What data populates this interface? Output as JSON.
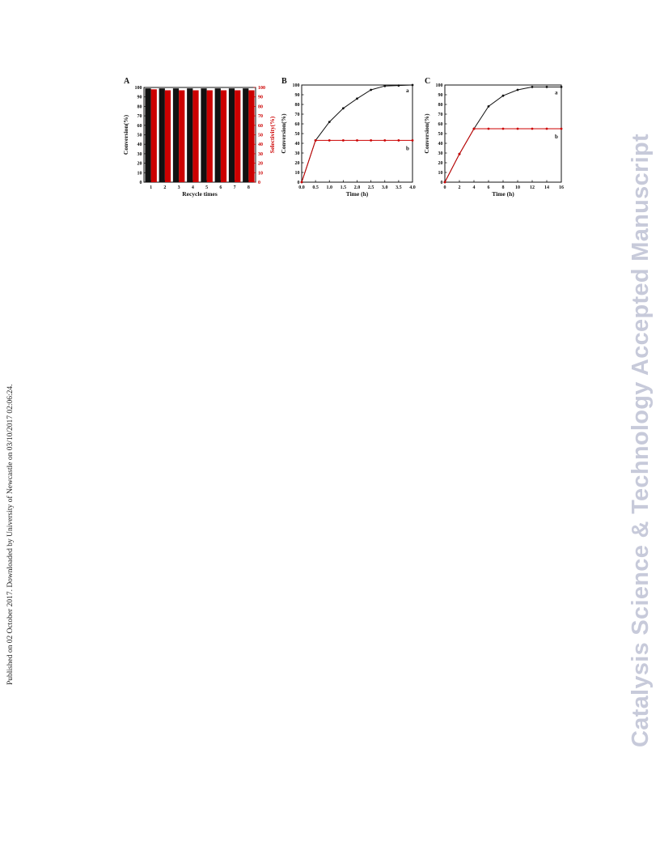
{
  "side_note": "Published on 02 October 2017. Downloaded by University of Newcastle on 03/10/2017 02:06:24.",
  "watermark": "Catalysis Science & Technology Accepted Manuscript",
  "colors": {
    "series_a": "#111111",
    "series_b": "#cc0000",
    "watermark": "#c7cada"
  },
  "chart_data": [
    {
      "panel": "A",
      "type": "bar",
      "xlabel": "Recycle times",
      "ylabel": "Conversion(%)",
      "ylabel_right": "Selectivity(%)",
      "categories": [
        "1",
        "2",
        "3",
        "4",
        "5",
        "6",
        "7",
        "8"
      ],
      "ylim": [
        0,
        100
      ],
      "yticks": [
        "0",
        "10",
        "20",
        "30",
        "40",
        "50",
        "60",
        "70",
        "80",
        "90",
        "100"
      ],
      "series": [
        {
          "values": [
            99,
            99,
            99,
            99,
            99,
            99,
            99,
            99
          ]
        },
        {
          "values": [
            98,
            97,
            97,
            97,
            97,
            97,
            97,
            97
          ]
        }
      ]
    },
    {
      "panel": "B",
      "type": "line",
      "xlabel": "Time (h)",
      "ylabel": "Conversion(%)",
      "xlim": [
        0,
        4
      ],
      "ylim": [
        0,
        100
      ],
      "xticks": [
        "0.0",
        "0.5",
        "1.0",
        "1.5",
        "2.0",
        "2.5",
        "3.0",
        "3.5",
        "4.0"
      ],
      "yticks": [
        "0",
        "10",
        "20",
        "30",
        "40",
        "50",
        "60",
        "70",
        "80",
        "90",
        "100"
      ],
      "series": [
        {
          "name": "a",
          "x": [
            0,
            0.5,
            1.0,
            1.5,
            2.0,
            2.5,
            3.0,
            3.5,
            4.0
          ],
          "y": [
            0,
            43,
            62,
            76,
            86,
            95,
            99,
            99.5,
            100
          ]
        },
        {
          "name": "b",
          "x": [
            0,
            0.5,
            1.0,
            1.5,
            2.0,
            2.5,
            3.0,
            3.5,
            4.0
          ],
          "y": [
            0,
            43,
            43,
            43,
            43,
            43,
            43,
            43,
            43
          ]
        }
      ]
    },
    {
      "panel": "C",
      "type": "line",
      "xlabel": "Time (h)",
      "ylabel": "Conversion(%)",
      "xlim": [
        0,
        16
      ],
      "ylim": [
        0,
        100
      ],
      "xticks": [
        "0",
        "2",
        "4",
        "6",
        "8",
        "10",
        "12",
        "14",
        "16"
      ],
      "yticks": [
        "0",
        "10",
        "20",
        "30",
        "40",
        "50",
        "60",
        "70",
        "80",
        "90",
        "100"
      ],
      "series": [
        {
          "name": "a",
          "x": [
            0,
            2,
            4,
            6,
            8,
            10,
            12,
            14,
            16
          ],
          "y": [
            0,
            29,
            55,
            78,
            89,
            95,
            98,
            98,
            98
          ]
        },
        {
          "name": "b",
          "x": [
            0,
            2,
            4,
            6,
            8,
            10,
            12,
            14,
            16
          ],
          "y": [
            0,
            29,
            55,
            55,
            55,
            55,
            55,
            55,
            55
          ]
        }
      ]
    }
  ]
}
